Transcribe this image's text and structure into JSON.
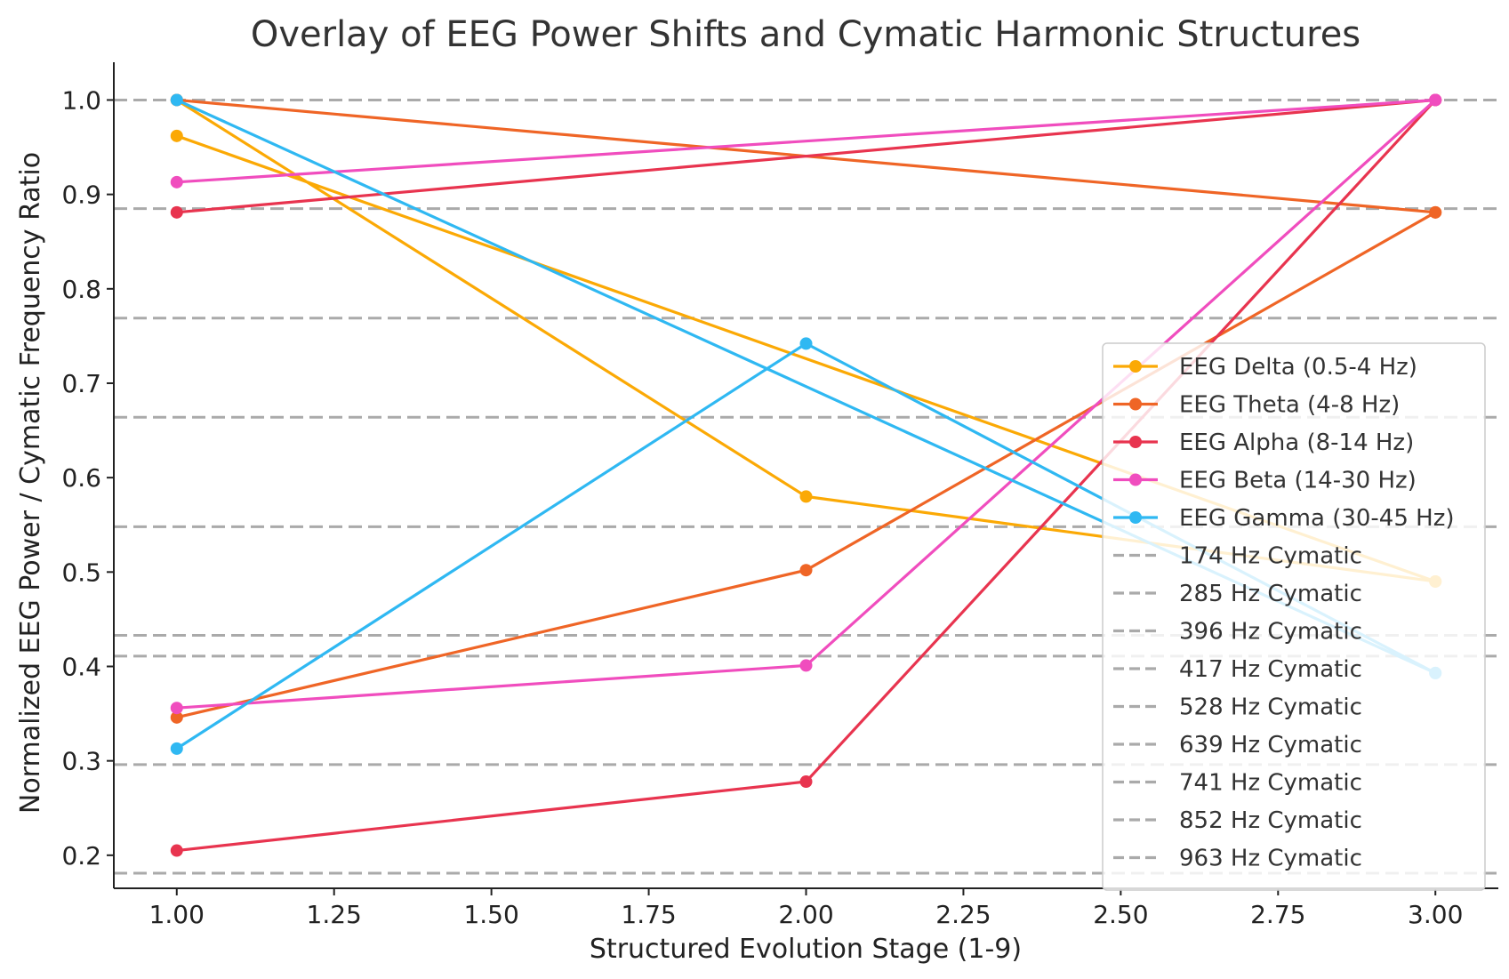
{
  "chart_data": {
    "type": "line",
    "title": "Overlay of EEG Power Shifts and Cymatic Harmonic Structures",
    "xlabel": "Structured Evolution Stage (1-9)",
    "ylabel": "Normalized EEG Power / Cymatic Frequency Ratio",
    "xlim": [
      0.9,
      3.1
    ],
    "ylim": [
      0.165,
      1.04
    ],
    "xticks": [
      1.0,
      1.25,
      1.5,
      1.75,
      2.0,
      2.25,
      2.5,
      2.75,
      3.0
    ],
    "xtick_labels": [
      "1.00",
      "1.25",
      "1.50",
      "1.75",
      "2.00",
      "2.25",
      "2.50",
      "2.75",
      "3.00"
    ],
    "yticks": [
      0.2,
      0.3,
      0.4,
      0.5,
      0.6,
      0.7,
      0.8,
      0.9,
      1.0
    ],
    "ytick_labels": [
      "0.2",
      "0.3",
      "0.4",
      "0.5",
      "0.6",
      "0.7",
      "0.8",
      "0.9",
      "1.0"
    ],
    "grid": false,
    "legend_position": "right",
    "series": [
      {
        "name": "EEG Delta (0.5-4 Hz)",
        "color": "#FBA905",
        "x": [
          1,
          2,
          3,
          1,
          3
        ],
        "y": [
          1.0,
          0.58,
          0.49,
          0.962,
          0.49
        ]
      },
      {
        "name": "EEG Theta (4-8 Hz)",
        "color": "#EF6526",
        "x": [
          1,
          2,
          3,
          1,
          3
        ],
        "y": [
          0.346,
          0.502,
          0.881,
          1.0,
          0.881
        ]
      },
      {
        "name": "EEG Alpha (8-14 Hz)",
        "color": "#E8344F",
        "x": [
          1,
          2,
          3,
          1,
          3
        ],
        "y": [
          0.205,
          0.278,
          1.0,
          0.881,
          1.0
        ]
      },
      {
        "name": "EEG Beta (14-30 Hz)",
        "color": "#F04DBE",
        "x": [
          1,
          2,
          3,
          1,
          3
        ],
        "y": [
          0.356,
          0.401,
          1.0,
          0.913,
          1.0
        ]
      },
      {
        "name": "EEG Gamma (30-45 Hz)",
        "color": "#2FB8F2",
        "x": [
          1,
          2,
          3,
          1,
          3
        ],
        "y": [
          0.313,
          0.742,
          0.393,
          1.0,
          0.393
        ]
      }
    ],
    "hlines": [
      {
        "name": "174 Hz Cymatic",
        "y": 0.181
      },
      {
        "name": "285 Hz Cymatic",
        "y": 0.296
      },
      {
        "name": "396 Hz Cymatic",
        "y": 0.411
      },
      {
        "name": "417 Hz Cymatic",
        "y": 0.433
      },
      {
        "name": "528 Hz Cymatic",
        "y": 0.548
      },
      {
        "name": "639 Hz Cymatic",
        "y": 0.664
      },
      {
        "name": "741 Hz Cymatic",
        "y": 0.769
      },
      {
        "name": "852 Hz Cymatic",
        "y": 0.885
      },
      {
        "name": "963 Hz Cymatic",
        "y": 1.0
      }
    ],
    "hline_color": "#AAAAAA"
  }
}
